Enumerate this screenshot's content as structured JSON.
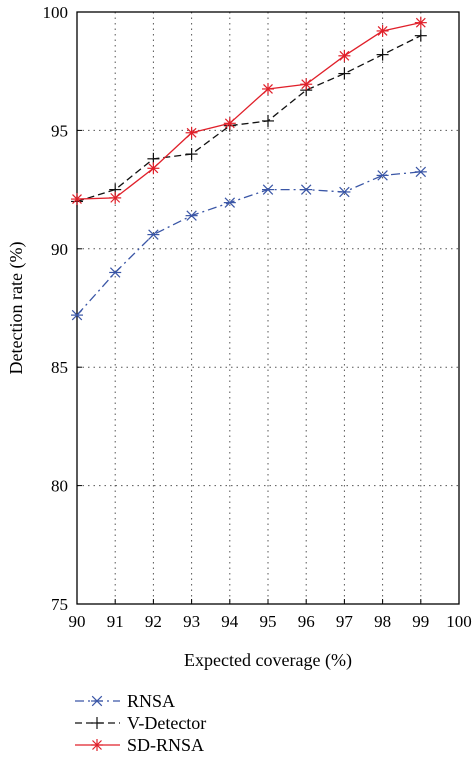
{
  "chart_data": {
    "type": "line",
    "xlabel": "Expected coverage (%)",
    "ylabel": "Detection rate (%)",
    "xlim": [
      90,
      100
    ],
    "ylim": [
      75,
      100
    ],
    "xticks": [
      90,
      91,
      92,
      93,
      94,
      95,
      96,
      97,
      98,
      99,
      100
    ],
    "yticks": [
      75,
      80,
      85,
      90,
      95,
      100
    ],
    "grid": true,
    "legend_position": "bottom-left, below plot",
    "x": [
      90,
      91,
      92,
      93,
      94,
      95,
      96,
      97,
      98,
      99
    ],
    "series": [
      {
        "name": "RNSA",
        "color": "#3a56a6",
        "line_style": "dash-dot",
        "marker": "asterisk",
        "values": [
          87.2,
          89.0,
          90.6,
          91.4,
          91.95,
          92.5,
          92.5,
          92.4,
          93.1,
          93.25
        ]
      },
      {
        "name": "V-Detector",
        "color": "#111111",
        "line_style": "dashed",
        "marker": "plus",
        "values": [
          92.0,
          92.5,
          93.8,
          94.0,
          95.2,
          95.4,
          96.7,
          97.4,
          98.2,
          99.0
        ]
      },
      {
        "name": "SD-RNSA",
        "color": "#e0202a",
        "line_style": "solid",
        "marker": "star",
        "values": [
          92.1,
          92.15,
          93.4,
          94.9,
          95.3,
          96.75,
          96.95,
          98.15,
          99.2,
          99.55
        ]
      }
    ]
  }
}
